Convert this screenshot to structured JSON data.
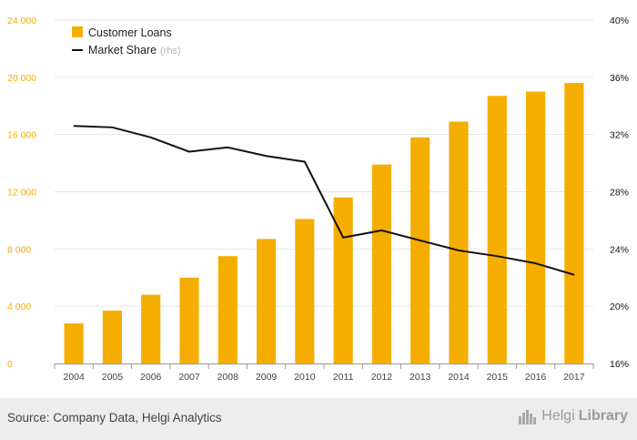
{
  "chart_data": {
    "type": "bar",
    "categories": [
      "2004",
      "2005",
      "2006",
      "2007",
      "2008",
      "2009",
      "2010",
      "2011",
      "2012",
      "2013",
      "2014",
      "2015",
      "2016",
      "2017"
    ],
    "series": [
      {
        "name": "Customer Loans",
        "axis": "left",
        "type": "bar",
        "color": "#f5ae00",
        "values": [
          2800,
          3700,
          4800,
          6000,
          7500,
          8700,
          10100,
          11600,
          13900,
          15800,
          16900,
          18700,
          19000,
          19600
        ]
      },
      {
        "name": "Market Share",
        "axis": "right",
        "type": "line",
        "color": "#111111",
        "values": [
          32.6,
          32.5,
          31.8,
          30.8,
          31.1,
          30.5,
          30.1,
          24.8,
          25.3,
          24.6,
          23.9,
          23.5,
          23.0,
          22.2
        ]
      }
    ],
    "legend": {
      "placement": "top-left",
      "items": [
        {
          "label": "Customer Loans",
          "suffix": ""
        },
        {
          "label": "Market Share",
          "suffix": "(rhs)"
        }
      ]
    },
    "ylim_left": [
      0,
      24000
    ],
    "yticks_left": [
      0,
      4000,
      8000,
      12000,
      16000,
      20000,
      24000
    ],
    "yticklabels_left": [
      "0",
      "4 000",
      "8 000",
      "12 000",
      "16 000",
      "20 000",
      "24 000"
    ],
    "ylim_right": [
      16,
      40
    ],
    "yticks_right": [
      16,
      20,
      24,
      28,
      32,
      36,
      40
    ],
    "yticklabels_right": [
      "16%",
      "20%",
      "24%",
      "28%",
      "32%",
      "36%",
      "40%"
    ],
    "grid": true,
    "colors": {
      "left_axis_labels": "#f5ae00",
      "right_axis_labels": "#111111",
      "grid": "#e6e6e6",
      "x_labels": "#444444"
    }
  },
  "footer": {
    "source": "Source: Company Data, Helgi Analytics",
    "brand_part1": "Helgi",
    "brand_part2": "Library",
    "brand_icon": "city-skyline-icon"
  }
}
